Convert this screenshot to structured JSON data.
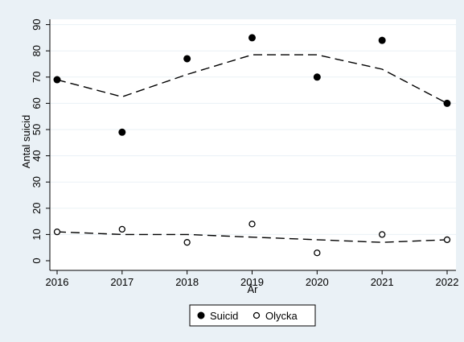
{
  "chart_data": {
    "type": "scatter",
    "xlabel": "År",
    "ylabel": "Antal suicid",
    "x": [
      2016,
      2017,
      2018,
      2019,
      2020,
      2021,
      2022
    ],
    "xlim": [
      2016,
      2022
    ],
    "ylim": [
      0,
      90
    ],
    "yticks": [
      0,
      10,
      20,
      30,
      40,
      50,
      60,
      70,
      80,
      90
    ],
    "grid": "horizontal",
    "legend_position": "bottom",
    "series": [
      {
        "name": "Suicid",
        "marker": "filled-circle",
        "color": "#000000",
        "values": [
          69,
          49,
          77,
          85,
          70,
          84,
          60
        ],
        "trend": [
          69,
          62.5,
          71,
          78.5,
          78.5,
          73,
          60
        ]
      },
      {
        "name": "Olycka",
        "marker": "hollow-circle",
        "color": "#000000",
        "values": [
          11,
          12,
          7,
          14,
          3,
          10,
          8
        ],
        "trend": [
          11,
          10,
          10,
          9,
          8,
          7,
          8
        ]
      }
    ]
  }
}
